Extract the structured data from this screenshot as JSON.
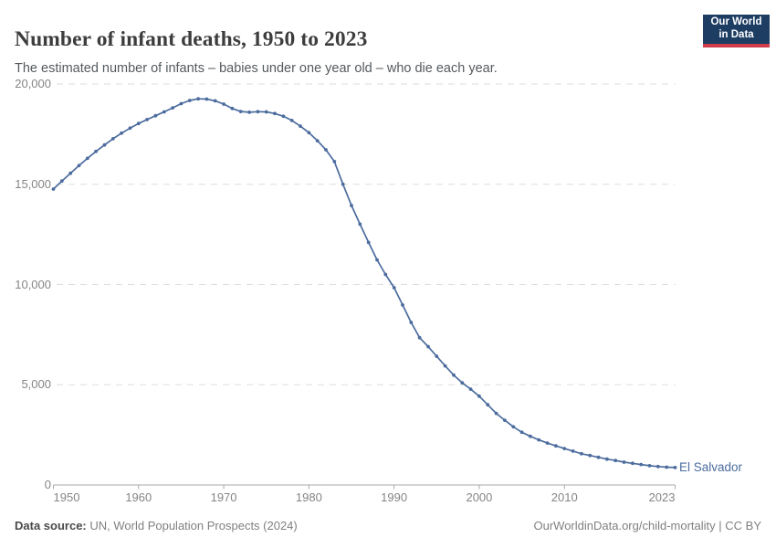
{
  "header": {
    "title": "Number of infant deaths, 1950 to 2023",
    "subtitle": "The estimated number of infants – babies under one year old – who die each year.",
    "logo": {
      "line1": "Our World",
      "line2": "in Data",
      "bg_color": "#1d3d63",
      "accent_color": "#d13d4b"
    }
  },
  "chart_data": {
    "type": "line",
    "title": "Number of infant deaths, 1950 to 2023",
    "entity_label": "El Salvador",
    "xlabel": "",
    "ylabel": "",
    "xlim": [
      1950,
      2023
    ],
    "ylim": [
      0,
      20000
    ],
    "grid": "horizontal-dashed",
    "legend_position": "end-of-line-label",
    "line_color": "#4C6C9E",
    "x_ticks": [
      1950,
      1960,
      1970,
      1980,
      1990,
      2000,
      2010,
      2023
    ],
    "x_tick_labels": [
      "1950",
      "1960",
      "1970",
      "1980",
      "1990",
      "2000",
      "2010",
      "2023"
    ],
    "y_ticks": [
      0,
      5000,
      10000,
      15000,
      20000
    ],
    "y_tick_labels": [
      "0",
      "5,000",
      "10,000",
      "15,000",
      "20,000"
    ],
    "x": [
      1950,
      1951,
      1952,
      1953,
      1954,
      1955,
      1956,
      1957,
      1958,
      1959,
      1960,
      1961,
      1962,
      1963,
      1964,
      1965,
      1966,
      1967,
      1968,
      1969,
      1970,
      1971,
      1972,
      1973,
      1974,
      1975,
      1976,
      1977,
      1978,
      1979,
      1980,
      1981,
      1982,
      1983,
      1984,
      1985,
      1986,
      1987,
      1988,
      1989,
      1990,
      1991,
      1992,
      1993,
      1994,
      1995,
      1996,
      1997,
      1998,
      1999,
      2000,
      2001,
      2002,
      2003,
      2004,
      2005,
      2006,
      2007,
      2008,
      2009,
      2010,
      2011,
      2012,
      2013,
      2014,
      2015,
      2016,
      2017,
      2018,
      2019,
      2020,
      2021,
      2022,
      2023
    ],
    "series": [
      {
        "name": "El Salvador",
        "values": [
          14760,
          15160,
          15550,
          15930,
          16290,
          16640,
          16960,
          17270,
          17550,
          17800,
          18030,
          18230,
          18420,
          18610,
          18810,
          19020,
          19180,
          19260,
          19250,
          19160,
          19000,
          18780,
          18630,
          18590,
          18620,
          18610,
          18530,
          18390,
          18180,
          17900,
          17570,
          17170,
          16720,
          16130,
          15000,
          13940,
          13010,
          12100,
          11230,
          10500,
          9840,
          8980,
          8110,
          7350,
          6900,
          6420,
          5940,
          5480,
          5100,
          4780,
          4430,
          4000,
          3570,
          3230,
          2900,
          2630,
          2430,
          2250,
          2090,
          1950,
          1820,
          1690,
          1560,
          1470,
          1380,
          1290,
          1220,
          1140,
          1080,
          1020,
          960,
          920,
          890,
          870
        ]
      }
    ]
  },
  "colors": {
    "line": "#4C6C9E",
    "entity_label": "#4C6C9E",
    "grid": "#dedede",
    "axis": "#a9a9a9",
    "tick_label": "#858585"
  },
  "footer": {
    "datasource_label": "Data source:",
    "datasource_value": "UN, World Population Prospects (2024)",
    "credit": "OurWorldinData.org/child-mortality | CC BY"
  }
}
